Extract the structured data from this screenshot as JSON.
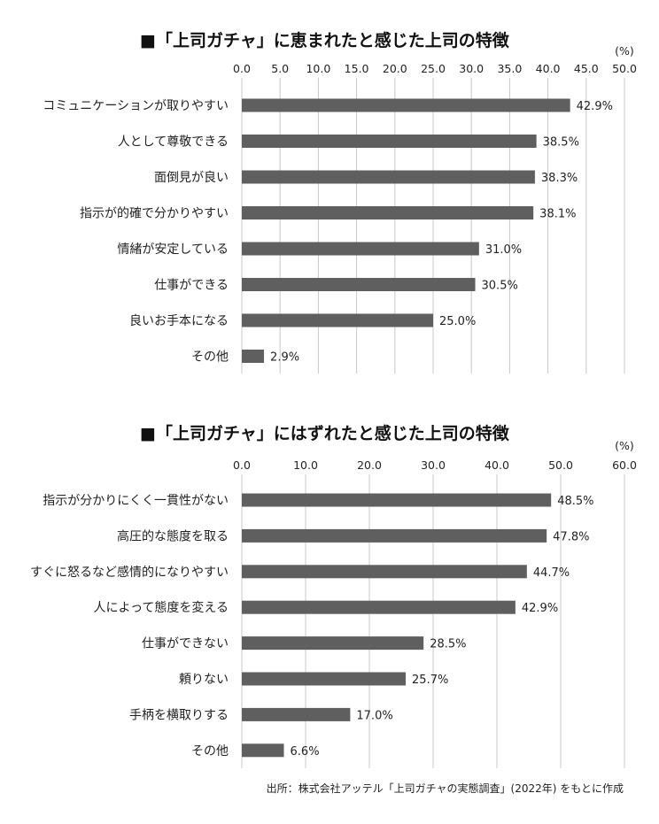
{
  "source": "出所：株式会社アッテル「上司ガチャの実態調査」(2022年) をもとに作成",
  "chart_data": [
    {
      "type": "bar",
      "orientation": "horizontal",
      "title": "■「上司ガチャ」に恵まれたと感じた上司の特徴",
      "unit_label": "(%)",
      "xlim": [
        0,
        50
      ],
      "ticks": [
        "0.0",
        "5.0",
        "10.0",
        "15.0",
        "20.0",
        "25.0",
        "30.0",
        "35.0",
        "40.0",
        "45.0",
        "50.0"
      ],
      "grid": true,
      "bar_color": "#5f5f5f",
      "categories": [
        "コミュニケーションが取りやすい",
        "人として尊敬できる",
        "面倒見が良い",
        "指示が的確で分かりやすい",
        "情緒が安定している",
        "仕事ができる",
        "良いお手本になる",
        "その他"
      ],
      "values": [
        42.9,
        38.5,
        38.3,
        38.1,
        31.0,
        30.5,
        25.0,
        2.9
      ],
      "value_labels": [
        "42.9%",
        "38.5%",
        "38.3%",
        "38.1%",
        "31.0%",
        "30.5%",
        "25.0%",
        "2.9%"
      ]
    },
    {
      "type": "bar",
      "orientation": "horizontal",
      "title": "■「上司ガチャ」にはずれたと感じた上司の特徴",
      "unit_label": "(%)",
      "xlim": [
        0,
        60
      ],
      "ticks": [
        "0.0",
        "10.0",
        "20.0",
        "30.0",
        "40.0",
        "50.0",
        "60.0"
      ],
      "grid": true,
      "bar_color": "#5f5f5f",
      "categories": [
        "指示が分かりにくく一貫性がない",
        "高圧的な態度を取る",
        "すぐに怒るなど感情的になりやすい",
        "人によって態度を変える",
        "仕事ができない",
        "頼りない",
        "手柄を横取りする",
        "その他"
      ],
      "values": [
        48.5,
        47.8,
        44.7,
        42.9,
        28.5,
        25.7,
        17.0,
        6.6
      ],
      "value_labels": [
        "48.5%",
        "47.8%",
        "44.7%",
        "42.9%",
        "28.5%",
        "25.7%",
        "17.0%",
        "6.6%"
      ]
    }
  ]
}
